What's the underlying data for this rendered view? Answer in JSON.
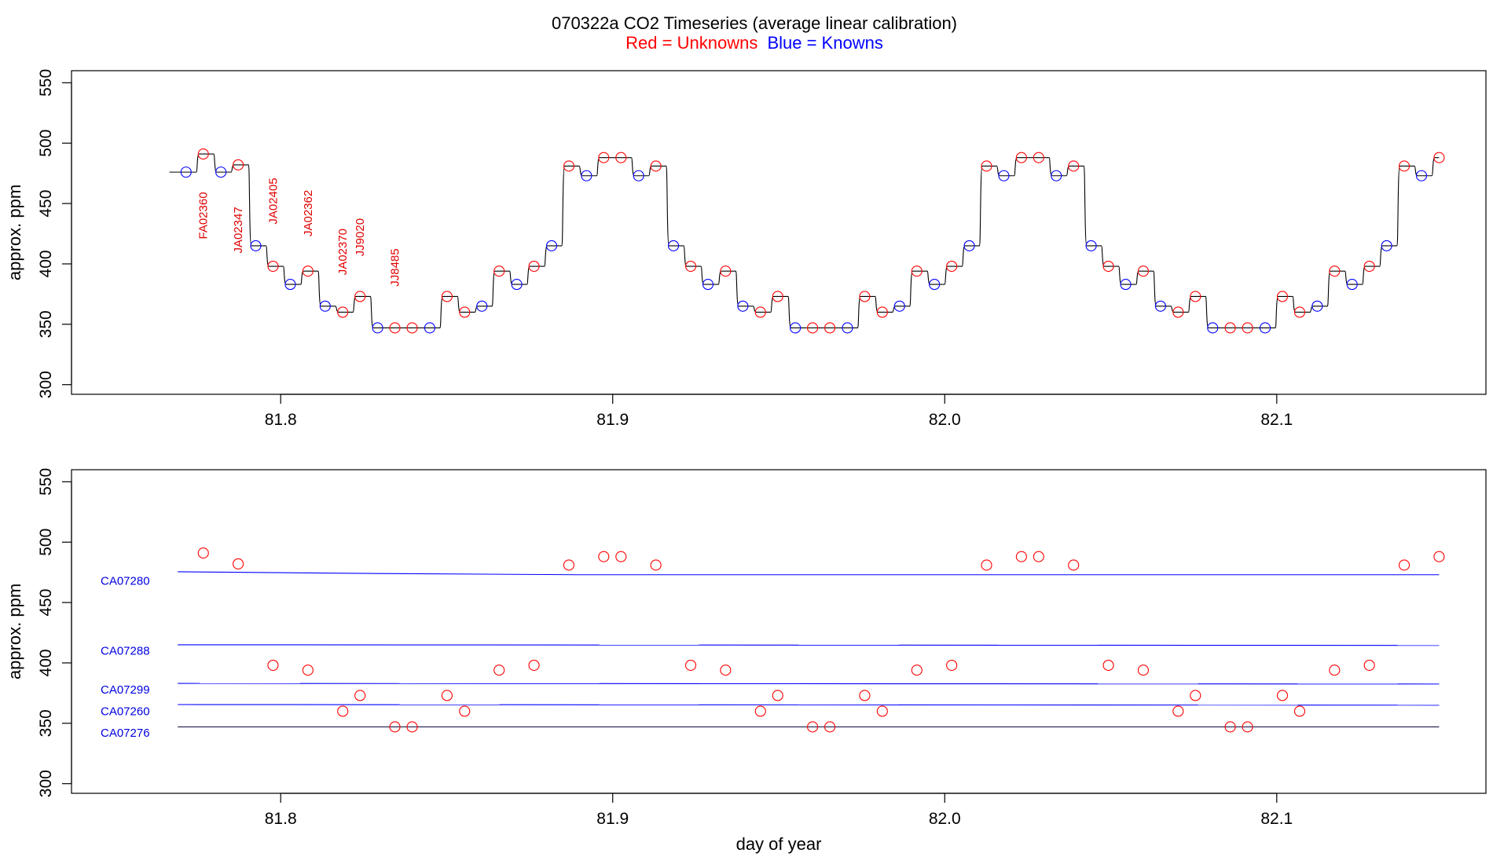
{
  "header": {
    "title": "070322a   CO2 Timeseries (average linear calibration)",
    "legend_red": "Red = Unknowns",
    "legend_blue": "Blue = Knowns"
  },
  "colors": {
    "unknown": "#ff0000",
    "known": "#0000ff",
    "trace": "#000000",
    "axis": "#000000",
    "label_unknown": "#e00000",
    "label_known": "#0000e0"
  },
  "chart_data": [
    {
      "type": "line",
      "panel": "top",
      "xlabel": "",
      "ylabel": "approx. ppm",
      "xlim": [
        81.737,
        82.163
      ],
      "ylim": [
        292,
        560
      ],
      "xticks": [
        81.8,
        81.9,
        82.0,
        82.1
      ],
      "xtick_labels": [
        "81.8",
        "81.9",
        "82.0",
        "82.1"
      ],
      "yticks": [
        300,
        350,
        400,
        450,
        500,
        550
      ],
      "ytick_labels": [
        "300",
        "350",
        "400",
        "450",
        "500",
        "550"
      ],
      "grid": false,
      "trace_start": {
        "x": 81.7665,
        "y": 476
      },
      "points": [
        {
          "x": 81.7715,
          "y": 476,
          "kind": "known"
        },
        {
          "x": 81.7767,
          "y": 491,
          "kind": "unknown"
        },
        {
          "x": 81.782,
          "y": 476,
          "kind": "known"
        },
        {
          "x": 81.7872,
          "y": 482,
          "kind": "unknown"
        },
        {
          "x": 81.7925,
          "y": 415,
          "kind": "known"
        },
        {
          "x": 81.7977,
          "y": 398,
          "kind": "unknown"
        },
        {
          "x": 81.8029,
          "y": 383,
          "kind": "known"
        },
        {
          "x": 81.8082,
          "y": 394,
          "kind": "unknown"
        },
        {
          "x": 81.8134,
          "y": 365,
          "kind": "known"
        },
        {
          "x": 81.8187,
          "y": 360,
          "kind": "unknown"
        },
        {
          "x": 81.8239,
          "y": 373,
          "kind": "unknown"
        },
        {
          "x": 81.8292,
          "y": 347,
          "kind": "known"
        },
        {
          "x": 81.8344,
          "y": 347,
          "kind": "unknown"
        },
        {
          "x": 81.8396,
          "y": 347,
          "kind": "unknown"
        },
        {
          "x": 81.8449,
          "y": 347,
          "kind": "known"
        },
        {
          "x": 81.8501,
          "y": 373,
          "kind": "unknown"
        },
        {
          "x": 81.8554,
          "y": 360,
          "kind": "unknown"
        },
        {
          "x": 81.8606,
          "y": 365,
          "kind": "known"
        },
        {
          "x": 81.8658,
          "y": 394,
          "kind": "unknown"
        },
        {
          "x": 81.8711,
          "y": 383,
          "kind": "known"
        },
        {
          "x": 81.8763,
          "y": 398,
          "kind": "unknown"
        },
        {
          "x": 81.8816,
          "y": 415,
          "kind": "known"
        },
        {
          "x": 81.8868,
          "y": 481,
          "kind": "unknown"
        },
        {
          "x": 81.8921,
          "y": 473,
          "kind": "known"
        },
        {
          "x": 81.8973,
          "y": 488,
          "kind": "unknown"
        },
        {
          "x": 81.9025,
          "y": 488,
          "kind": "unknown"
        },
        {
          "x": 81.9078,
          "y": 473,
          "kind": "known"
        },
        {
          "x": 81.913,
          "y": 481,
          "kind": "unknown"
        },
        {
          "x": 81.9183,
          "y": 415,
          "kind": "known"
        },
        {
          "x": 81.9235,
          "y": 398,
          "kind": "unknown"
        },
        {
          "x": 81.9287,
          "y": 383,
          "kind": "known"
        },
        {
          "x": 81.934,
          "y": 394,
          "kind": "unknown"
        },
        {
          "x": 81.9392,
          "y": 365,
          "kind": "known"
        },
        {
          "x": 81.9445,
          "y": 360,
          "kind": "unknown"
        },
        {
          "x": 81.9497,
          "y": 373,
          "kind": "unknown"
        },
        {
          "x": 81.955,
          "y": 347,
          "kind": "known"
        },
        {
          "x": 81.9602,
          "y": 347,
          "kind": "unknown"
        },
        {
          "x": 81.9654,
          "y": 347,
          "kind": "unknown"
        },
        {
          "x": 81.9707,
          "y": 347,
          "kind": "known"
        },
        {
          "x": 81.9759,
          "y": 373,
          "kind": "unknown"
        },
        {
          "x": 81.9812,
          "y": 360,
          "kind": "unknown"
        },
        {
          "x": 81.9864,
          "y": 365,
          "kind": "known"
        },
        {
          "x": 81.9916,
          "y": 394,
          "kind": "unknown"
        },
        {
          "x": 81.9969,
          "y": 383,
          "kind": "known"
        },
        {
          "x": 82.0021,
          "y": 398,
          "kind": "unknown"
        },
        {
          "x": 82.0074,
          "y": 415,
          "kind": "known"
        },
        {
          "x": 82.0126,
          "y": 481,
          "kind": "unknown"
        },
        {
          "x": 82.0178,
          "y": 473,
          "kind": "known"
        },
        {
          "x": 82.0231,
          "y": 488,
          "kind": "unknown"
        },
        {
          "x": 82.0283,
          "y": 488,
          "kind": "unknown"
        },
        {
          "x": 82.0336,
          "y": 473,
          "kind": "known"
        },
        {
          "x": 82.0388,
          "y": 481,
          "kind": "unknown"
        },
        {
          "x": 82.0441,
          "y": 415,
          "kind": "known"
        },
        {
          "x": 82.0493,
          "y": 398,
          "kind": "unknown"
        },
        {
          "x": 82.0545,
          "y": 383,
          "kind": "known"
        },
        {
          "x": 82.0598,
          "y": 394,
          "kind": "unknown"
        },
        {
          "x": 82.065,
          "y": 365,
          "kind": "known"
        },
        {
          "x": 82.0703,
          "y": 360,
          "kind": "unknown"
        },
        {
          "x": 82.0755,
          "y": 373,
          "kind": "unknown"
        },
        {
          "x": 82.0807,
          "y": 347,
          "kind": "known"
        },
        {
          "x": 82.086,
          "y": 347,
          "kind": "unknown"
        },
        {
          "x": 82.0912,
          "y": 347,
          "kind": "unknown"
        },
        {
          "x": 82.0965,
          "y": 347,
          "kind": "known"
        },
        {
          "x": 82.1017,
          "y": 373,
          "kind": "unknown"
        },
        {
          "x": 82.1069,
          "y": 360,
          "kind": "unknown"
        },
        {
          "x": 82.1122,
          "y": 365,
          "kind": "known"
        },
        {
          "x": 82.1174,
          "y": 394,
          "kind": "unknown"
        },
        {
          "x": 82.1227,
          "y": 383,
          "kind": "known"
        },
        {
          "x": 82.1279,
          "y": 398,
          "kind": "unknown"
        },
        {
          "x": 82.1331,
          "y": 415,
          "kind": "known"
        },
        {
          "x": 82.1384,
          "y": 481,
          "kind": "unknown"
        },
        {
          "x": 82.1436,
          "y": 473,
          "kind": "known"
        },
        {
          "x": 82.1489,
          "y": 488,
          "kind": "unknown"
        }
      ],
      "annotations": [
        {
          "text": "FA02360",
          "x": 81.7767,
          "y": 440
        },
        {
          "text": "JA02347",
          "x": 81.7872,
          "y": 428
        },
        {
          "text": "JA02405",
          "x": 81.7977,
          "y": 452
        },
        {
          "text": "JA02362",
          "x": 81.8082,
          "y": 442
        },
        {
          "text": "JA02370",
          "x": 81.8187,
          "y": 410
        },
        {
          "text": "JJ9020",
          "x": 81.8239,
          "y": 422
        },
        {
          "text": "JJ8485",
          "x": 81.8344,
          "y": 397
        }
      ]
    },
    {
      "type": "scatter",
      "panel": "bottom",
      "xlabel": "day of year",
      "ylabel": "approx. ppm",
      "xlim": [
        81.737,
        82.163
      ],
      "ylim": [
        292,
        560
      ],
      "xticks": [
        81.8,
        81.9,
        82.0,
        82.1
      ],
      "xtick_labels": [
        "81.8",
        "81.9",
        "82.0",
        "82.1"
      ],
      "yticks": [
        300,
        350,
        400,
        450,
        500,
        550
      ],
      "ytick_labels": [
        "300",
        "350",
        "400",
        "450",
        "500",
        "550"
      ],
      "grid": false,
      "unknowns": [
        {
          "x": 81.7767,
          "y": 491
        },
        {
          "x": 81.7872,
          "y": 482
        },
        {
          "x": 81.7977,
          "y": 398
        },
        {
          "x": 81.8082,
          "y": 394
        },
        {
          "x": 81.8187,
          "y": 360
        },
        {
          "x": 81.8239,
          "y": 373
        },
        {
          "x": 81.8344,
          "y": 347
        },
        {
          "x": 81.8396,
          "y": 347
        },
        {
          "x": 81.8501,
          "y": 373
        },
        {
          "x": 81.8554,
          "y": 360
        },
        {
          "x": 81.8658,
          "y": 394
        },
        {
          "x": 81.8763,
          "y": 398
        },
        {
          "x": 81.8868,
          "y": 481
        },
        {
          "x": 81.8973,
          "y": 488
        },
        {
          "x": 81.9025,
          "y": 488
        },
        {
          "x": 81.913,
          "y": 481
        },
        {
          "x": 81.9235,
          "y": 398
        },
        {
          "x": 81.934,
          "y": 394
        },
        {
          "x": 81.9445,
          "y": 360
        },
        {
          "x": 81.9497,
          "y": 373
        },
        {
          "x": 81.9602,
          "y": 347
        },
        {
          "x": 81.9654,
          "y": 347
        },
        {
          "x": 81.9759,
          "y": 373
        },
        {
          "x": 81.9812,
          "y": 360
        },
        {
          "x": 81.9916,
          "y": 394
        },
        {
          "x": 82.0021,
          "y": 398
        },
        {
          "x": 82.0126,
          "y": 481
        },
        {
          "x": 82.0231,
          "y": 488
        },
        {
          "x": 82.0283,
          "y": 488
        },
        {
          "x": 82.0388,
          "y": 481
        },
        {
          "x": 82.0493,
          "y": 398
        },
        {
          "x": 82.0598,
          "y": 394
        },
        {
          "x": 82.0703,
          "y": 360
        },
        {
          "x": 82.0755,
          "y": 373
        },
        {
          "x": 82.086,
          "y": 347
        },
        {
          "x": 82.0912,
          "y": 347
        },
        {
          "x": 82.1017,
          "y": 373
        },
        {
          "x": 82.1069,
          "y": 360
        },
        {
          "x": 82.1174,
          "y": 394
        },
        {
          "x": 82.1279,
          "y": 398
        },
        {
          "x": 82.1384,
          "y": 481
        },
        {
          "x": 82.1489,
          "y": 488
        }
      ],
      "standards": [
        {
          "name": "CA07280",
          "x": [
            81.769,
            81.83,
            81.89,
            82.1489
          ],
          "y": [
            475.5,
            474.0,
            473.0,
            473.0
          ],
          "color": "#0000ff",
          "label_y": 468
        },
        {
          "name": "CA07288",
          "x": [
            81.769,
            82.1489
          ],
          "y": [
            415.0,
            414.5
          ],
          "color": "#0000ff",
          "label_y": 410
        },
        {
          "name": "CA07299",
          "x": [
            81.769,
            82.1489
          ],
          "y": [
            383.0,
            382.5
          ],
          "color": "#0000ff",
          "label_y": 378
        },
        {
          "name": "CA07260",
          "x": [
            81.769,
            82.1489
          ],
          "y": [
            365.5,
            365.0
          ],
          "color": "#0000ff",
          "label_y": 360
        },
        {
          "name": "CA07276",
          "x": [
            81.769,
            82.1489
          ],
          "y": [
            347.0,
            347.0
          ],
          "color": "#1a1a4a",
          "label_y": 342
        }
      ]
    }
  ]
}
